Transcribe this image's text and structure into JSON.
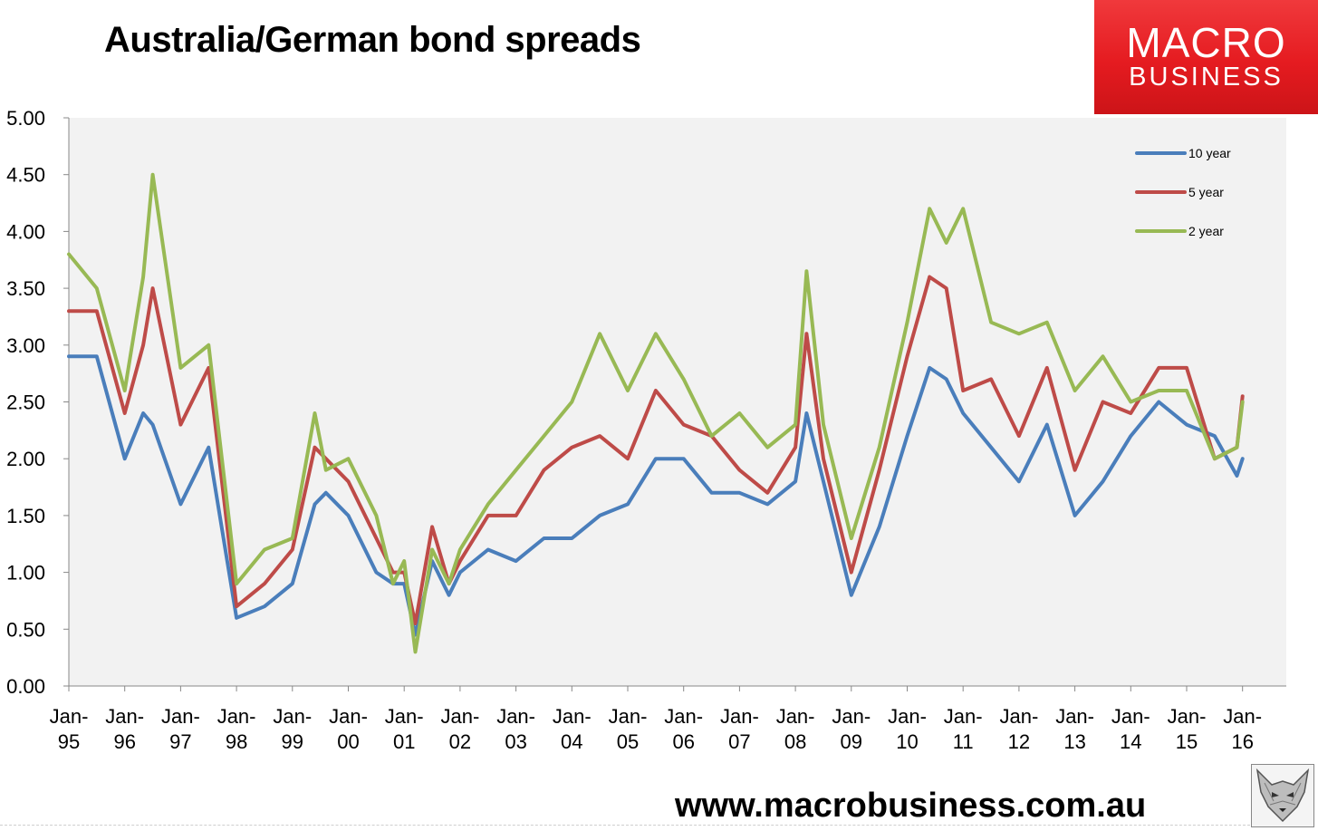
{
  "header": {
    "title": "Australia/German bond spreads",
    "logo_line1": "MACRO",
    "logo_line2": "BUSINESS"
  },
  "footer": {
    "url": "www.macrobusiness.com.au"
  },
  "colors": {
    "ten_year": "#4a7ebb",
    "five_year": "#be4b48",
    "two_year": "#98b954",
    "plot_background": "#f2f2f2",
    "logo_red": "#e51b20"
  },
  "chart_data": {
    "type": "line",
    "title": "Australia/German bond spreads",
    "xlabel": "",
    "ylabel": "",
    "ylim": [
      0,
      5
    ],
    "yticks": [
      "0.00",
      "0.50",
      "1.00",
      "1.50",
      "2.00",
      "2.50",
      "3.00",
      "3.50",
      "4.00",
      "4.50",
      "5.00"
    ],
    "xticks": [
      [
        "Jan-",
        "95"
      ],
      [
        "Jan-",
        "96"
      ],
      [
        "Jan-",
        "97"
      ],
      [
        "Jan-",
        "98"
      ],
      [
        "Jan-",
        "99"
      ],
      [
        "Jan-",
        "00"
      ],
      [
        "Jan-",
        "01"
      ],
      [
        "Jan-",
        "02"
      ],
      [
        "Jan-",
        "03"
      ],
      [
        "Jan-",
        "04"
      ],
      [
        "Jan-",
        "05"
      ],
      [
        "Jan-",
        "06"
      ],
      [
        "Jan-",
        "07"
      ],
      [
        "Jan-",
        "08"
      ],
      [
        "Jan-",
        "09"
      ],
      [
        "Jan-",
        "10"
      ],
      [
        "Jan-",
        "11"
      ],
      [
        "Jan-",
        "12"
      ],
      [
        "Jan-",
        "13"
      ],
      [
        "Jan-",
        "14"
      ],
      [
        "Jan-",
        "15"
      ],
      [
        "Jan-",
        "16"
      ]
    ],
    "x_years": [
      1995.0,
      1995.5,
      1996.0,
      1996.33,
      1996.5,
      1997.0,
      1997.5,
      1998.0,
      1998.5,
      1999.0,
      1999.4,
      1999.6,
      2000.0,
      2000.5,
      2000.8,
      2001.0,
      2001.2,
      2001.5,
      2001.8,
      2002.0,
      2002.5,
      2003.0,
      2003.5,
      2004.0,
      2004.5,
      2005.0,
      2005.5,
      2006.0,
      2006.5,
      2007.0,
      2007.5,
      2008.0,
      2008.2,
      2008.5,
      2009.0,
      2009.5,
      2010.0,
      2010.4,
      2010.7,
      2011.0,
      2011.5,
      2012.0,
      2012.5,
      2013.0,
      2013.5,
      2014.0,
      2014.5,
      2015.0,
      2015.5,
      2015.9,
      2016.0
    ],
    "legend": {
      "position": "top-right"
    },
    "series": [
      {
        "name": "10 year",
        "values": [
          2.9,
          2.9,
          2.0,
          2.4,
          2.3,
          1.6,
          2.1,
          0.6,
          0.7,
          0.9,
          1.6,
          1.7,
          1.5,
          1.0,
          0.9,
          0.9,
          0.45,
          1.1,
          0.8,
          1.0,
          1.2,
          1.1,
          1.3,
          1.3,
          1.5,
          1.6,
          2.0,
          2.0,
          1.7,
          1.7,
          1.6,
          1.8,
          2.4,
          1.8,
          0.8,
          1.4,
          2.2,
          2.8,
          2.7,
          2.4,
          2.1,
          1.8,
          2.3,
          1.5,
          1.8,
          2.2,
          2.5,
          2.3,
          2.2,
          1.85,
          2.0
        ]
      },
      {
        "name": "5 year",
        "values": [
          3.3,
          3.3,
          2.4,
          3.0,
          3.5,
          2.3,
          2.8,
          0.7,
          0.9,
          1.2,
          2.1,
          2.0,
          1.8,
          1.3,
          1.0,
          1.0,
          0.55,
          1.4,
          0.9,
          1.1,
          1.5,
          1.5,
          1.9,
          2.1,
          2.2,
          2.0,
          2.6,
          2.3,
          2.2,
          1.9,
          1.7,
          2.1,
          3.1,
          2.0,
          1.0,
          1.9,
          2.9,
          3.6,
          3.5,
          2.6,
          2.7,
          2.2,
          2.8,
          1.9,
          2.5,
          2.4,
          2.8,
          2.8,
          2.0,
          2.1,
          2.55
        ]
      },
      {
        "name": "2 year",
        "values": [
          3.8,
          3.5,
          2.6,
          3.6,
          4.5,
          2.8,
          3.0,
          0.9,
          1.2,
          1.3,
          2.4,
          1.9,
          2.0,
          1.5,
          0.9,
          1.1,
          0.3,
          1.2,
          0.9,
          1.2,
          1.6,
          1.9,
          2.2,
          2.5,
          3.1,
          2.6,
          3.1,
          2.7,
          2.2,
          2.4,
          2.1,
          2.3,
          3.65,
          2.3,
          1.3,
          2.1,
          3.2,
          4.2,
          3.9,
          4.2,
          3.2,
          3.1,
          3.2,
          2.6,
          2.9,
          2.5,
          2.6,
          2.6,
          2.0,
          2.1,
          2.5
        ]
      }
    ]
  }
}
